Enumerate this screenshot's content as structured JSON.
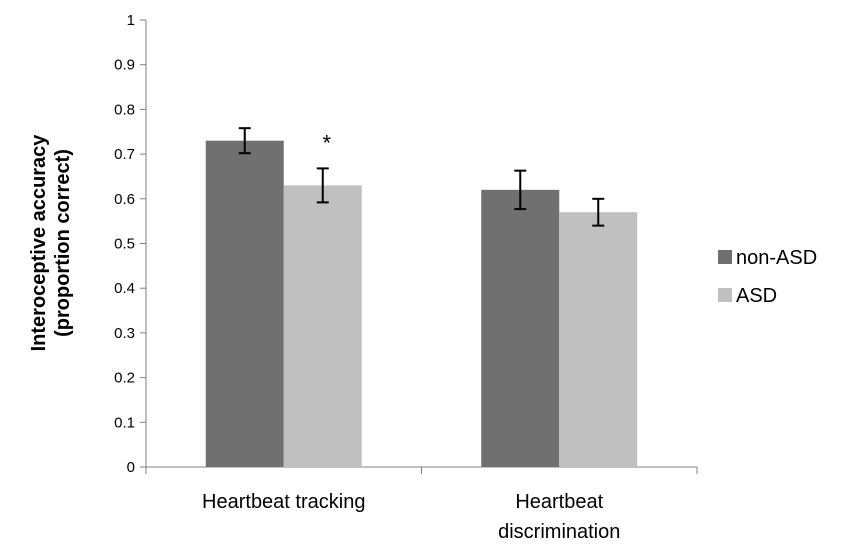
{
  "chart_data": {
    "type": "bar",
    "categories": [
      [
        "Heartbeat tracking"
      ],
      [
        "Heartbeat",
        "discrimination"
      ]
    ],
    "series": [
      {
        "name": "non-ASD",
        "color": "#707070",
        "values": [
          0.73,
          0.62
        ],
        "errors": [
          0.028,
          0.043
        ]
      },
      {
        "name": "ASD",
        "color": "#c0c0c0",
        "values": [
          0.63,
          0.57
        ],
        "errors": [
          0.038,
          0.03
        ]
      }
    ],
    "ylabel": [
      "Interoceptive accuracy",
      "(proportion correct)"
    ],
    "xlabel": "",
    "ylim": [
      0,
      1
    ],
    "yticks": [
      "0",
      "0.1",
      "0.2",
      "0.3",
      "0.4",
      "0.5",
      "0.6",
      "0.7",
      "0.8",
      "0.9",
      "1"
    ],
    "annotations": [
      {
        "text": "*",
        "category": 0,
        "series": 1
      }
    ],
    "legend_position": "right",
    "grid": false
  }
}
